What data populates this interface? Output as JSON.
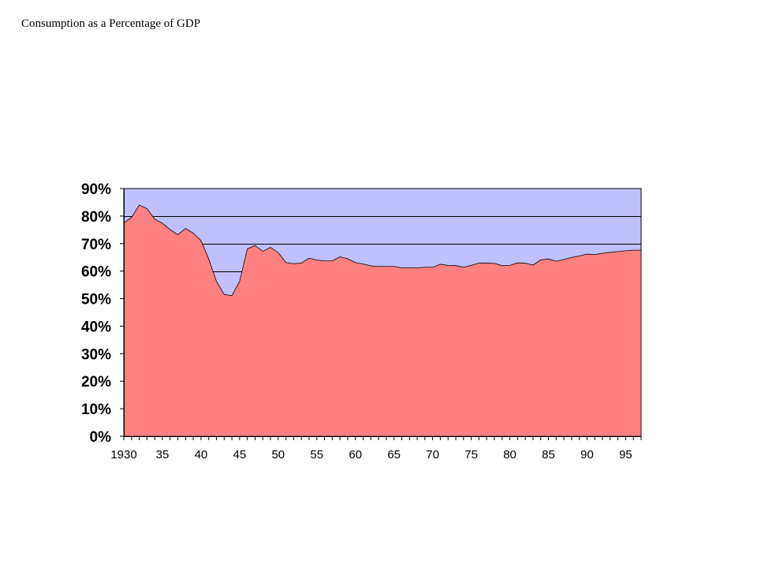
{
  "slide": {
    "title": "Consumption as a Percentage of GDP"
  },
  "chart_data": {
    "type": "area",
    "title": "",
    "xlabel": "",
    "ylabel": "",
    "x": [
      1930,
      1931,
      1932,
      1933,
      1934,
      1935,
      1936,
      1937,
      1938,
      1939,
      1940,
      1941,
      1942,
      1943,
      1944,
      1945,
      1946,
      1947,
      1948,
      1949,
      1950,
      1951,
      1952,
      1953,
      1954,
      1955,
      1956,
      1957,
      1958,
      1959,
      1960,
      1961,
      1962,
      1963,
      1964,
      1965,
      1966,
      1967,
      1968,
      1969,
      1970,
      1971,
      1972,
      1973,
      1974,
      1975,
      1976,
      1977,
      1978,
      1979,
      1980,
      1981,
      1982,
      1983,
      1984,
      1985,
      1986,
      1987,
      1988,
      1989,
      1990,
      1991,
      1992,
      1993,
      1994,
      1995,
      1996,
      1997
    ],
    "values": [
      77.5,
      79.5,
      84,
      82.7,
      78.9,
      77.4,
      75.1,
      73.2,
      75.5,
      73.8,
      71.1,
      64.4,
      56.3,
      51.5,
      51.1,
      56.3,
      68.1,
      69.3,
      67.2,
      68.6,
      66.7,
      63.1,
      62.7,
      62.9,
      64.7,
      64.0,
      63.7,
      63.7,
      65.2,
      64.5,
      63.1,
      62.6,
      61.9,
      61.7,
      61.7,
      61.7,
      61.2,
      61.2,
      61.2,
      61.4,
      61.4,
      62.5,
      62.1,
      62.0,
      61.4,
      62.1,
      62.9,
      62.9,
      62.8,
      62.0,
      62.1,
      63.0,
      62.9,
      62.2,
      64.1,
      64.4,
      63.6,
      64.2,
      65.0,
      65.5,
      66.2,
      66.0,
      66.5,
      66.8,
      67.1,
      67.4,
      67.6,
      67.6
    ],
    "series_name": "",
    "xlim": [
      1930,
      1997
    ],
    "ylim": [
      0,
      90
    ],
    "y_ticks": [
      "0%",
      "10%",
      "20%",
      "30%",
      "40%",
      "50%",
      "60%",
      "70%",
      "80%",
      "90%"
    ],
    "x_tick_labels": [
      {
        "year": 1930,
        "label": "1930"
      },
      {
        "year": 1935,
        "label": "35"
      },
      {
        "year": 1940,
        "label": "40"
      },
      {
        "year": 1945,
        "label": "45"
      },
      {
        "year": 1950,
        "label": "50"
      },
      {
        "year": 1955,
        "label": "55"
      },
      {
        "year": 1960,
        "label": "60"
      },
      {
        "year": 1965,
        "label": "65"
      },
      {
        "year": 1970,
        "label": "70"
      },
      {
        "year": 1975,
        "label": "75"
      },
      {
        "year": 1980,
        "label": "80"
      },
      {
        "year": 1985,
        "label": "85"
      },
      {
        "year": 1990,
        "label": "90"
      },
      {
        "year": 1995,
        "label": "95"
      }
    ],
    "grid": true,
    "legend": "none",
    "colors": {
      "area_fill": "#FF8080",
      "plot_background": "#C0C0FF",
      "gridline": "#000000",
      "axis": "#000000"
    }
  }
}
